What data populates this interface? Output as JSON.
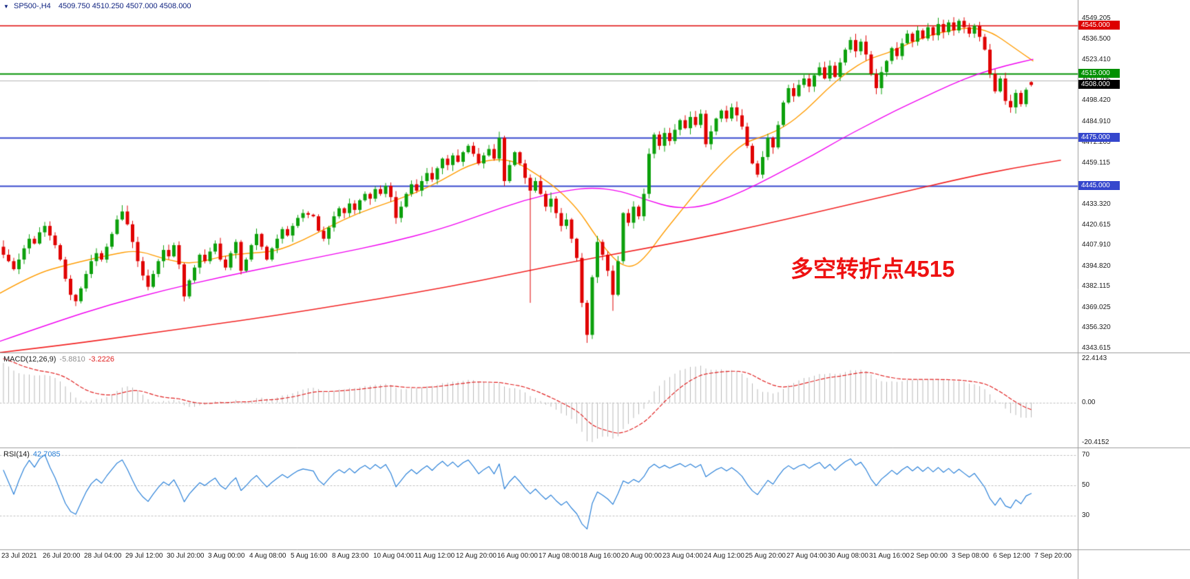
{
  "header": {
    "symbol": "SP500-,H4",
    "ohlc": "4509.750 4510.250 4507.000 4508.000",
    "dropdown_icon": "triangle-down"
  },
  "annotation": {
    "text": "多空转折点4515",
    "color": "#ee1111"
  },
  "price_axis": {
    "labels": [
      "4549.205",
      "4536.500",
      "4523.410",
      "4510.705",
      "4498.420",
      "4484.910",
      "4472.205",
      "4459.115",
      "4433.320",
      "4420.615",
      "4407.910",
      "4394.820",
      "4382.115",
      "4369.025",
      "4356.320",
      "4343.615"
    ],
    "tags": [
      {
        "text": "4545.000",
        "bg": "#dd0000"
      },
      {
        "text": "4515.000",
        "bg": "#009000"
      },
      {
        "text": "4508.000",
        "bg": "#000000"
      },
      {
        "text": "4475.000",
        "bg": "#3547cd"
      },
      {
        "text": "4445.000",
        "bg": "#3547cd"
      }
    ]
  },
  "time_axis": {
    "labels": [
      "23 Jul 2021",
      "26 Jul 20:00",
      "28 Jul 04:00",
      "29 Jul 12:00",
      "30 Jul 20:00",
      "3 Aug 00:00",
      "4 Aug 08:00",
      "5 Aug 16:00",
      "8 Aug 23:00",
      "10 Aug 04:00",
      "11 Aug 12:00",
      "12 Aug 20:00",
      "16 Aug 00:00",
      "17 Aug 08:00",
      "18 Aug 16:00",
      "20 Aug 00:00",
      "23 Aug 04:00",
      "24 Aug 12:00",
      "25 Aug 20:00",
      "27 Aug 04:00",
      "30 Aug 08:00",
      "31 Aug 16:00",
      "2 Sep 00:00",
      "3 Sep 08:00",
      "6 Sep 12:00",
      "7 Sep 20:00"
    ]
  },
  "chart_data": [
    {
      "type": "candlestick",
      "title": "SP500-,H4",
      "y_range": [
        4341,
        4561
      ],
      "up_color": "#0ca00c",
      "down_color": "#e00000",
      "closes": [
        4402,
        4398,
        4393,
        4399,
        4406,
        4412,
        4409,
        4416,
        4420,
        4414,
        4408,
        4399,
        4387,
        4377,
        4373,
        4381,
        4390,
        4398,
        4403,
        4399,
        4407,
        4415,
        4424,
        4429,
        4421,
        4410,
        4398,
        4389,
        4382,
        4390,
        4398,
        4405,
        4401,
        4408,
        4396,
        4376,
        4386,
        4394,
        4402,
        4398,
        4404,
        4409,
        4399,
        4394,
        4403,
        4410,
        4392,
        4399,
        4408,
        4415,
        4407,
        4399,
        4406,
        4412,
        4418,
        4414,
        4420,
        4425,
        4428,
        4427,
        4426,
        4417,
        4412,
        4419,
        4426,
        4431,
        4428,
        4434,
        4430,
        4436,
        4440,
        4437,
        4443,
        4440,
        4445,
        4438,
        4425,
        4432,
        4440,
        4446,
        4442,
        4448,
        4453,
        4449,
        4456,
        4462,
        4458,
        4464,
        4460,
        4466,
        4470,
        4465,
        4459,
        4464,
        4468,
        4462,
        4475,
        4448,
        4458,
        4466,
        4459,
        4450,
        4442,
        4448,
        4440,
        4432,
        4437,
        4428,
        4420,
        4424,
        4412,
        4400,
        4372,
        4352,
        4388,
        4410,
        4402,
        4392,
        4377,
        4398,
        4428,
        4422,
        4432,
        4426,
        4440,
        4465,
        4477,
        4470,
        4478,
        4473,
        4480,
        4486,
        4481,
        4488,
        4483,
        4490,
        4471,
        4479,
        4487,
        4492,
        4487,
        4494,
        4489,
        4482,
        4470,
        4459,
        4452,
        4463,
        4475,
        4469,
        4483,
        4497,
        4506,
        4501,
        4508,
        4512,
        4507,
        4514,
        4519,
        4512,
        4520,
        4513,
        4522,
        4530,
        4536,
        4529,
        4535,
        4527,
        4515,
        4506,
        4516,
        4523,
        4531,
        4526,
        4534,
        4540,
        4535,
        4542,
        4537,
        4544,
        4539,
        4546,
        4541,
        4547,
        4542,
        4548,
        4544,
        4540,
        4545,
        4538,
        4530,
        4515,
        4504,
        4512,
        4498,
        4494,
        4503,
        4496,
        4505,
        4508
      ],
      "wick_overrides": {
        "102": {
          "low": 4372
        },
        "113": {
          "low": 4347
        },
        "118": {
          "low": 4367
        },
        "185": {
          "high": 4549.2
        },
        "199": {
          "open": 4509.75,
          "high": 4510.25,
          "low": 4507.0,
          "close": 4508.0
        }
      },
      "hlines": [
        {
          "price": 4545.0,
          "color": "#dd0000",
          "width": 1.5
        },
        {
          "price": 4515.0,
          "color": "#009000",
          "width": 2
        },
        {
          "price": 4510.705,
          "color": "#b4b4b4",
          "width": 1
        },
        {
          "price": 4475.0,
          "color": "#3547cd",
          "width": 2
        },
        {
          "price": 4445.0,
          "color": "#3547cd",
          "width": 2
        }
      ],
      "moving_averages": [
        {
          "name": "ma-fast-orange",
          "color": "#ff9c00",
          "width": 1.4,
          "points": [
            [
              0,
              4378
            ],
            [
              50,
              4390
            ],
            [
              100,
              4396
            ],
            [
              160,
              4402
            ],
            [
              200,
              4405
            ],
            [
              240,
              4399
            ],
            [
              280,
              4396
            ],
            [
              320,
              4401
            ],
            [
              360,
              4403
            ],
            [
              400,
              4404
            ],
            [
              440,
              4411
            ],
            [
              480,
              4420
            ],
            [
              520,
              4428
            ],
            [
              560,
              4434
            ],
            [
              600,
              4440
            ],
            [
              640,
              4448
            ],
            [
              680,
              4458
            ],
            [
              720,
              4462
            ],
            [
              750,
              4460
            ],
            [
              780,
              4452
            ],
            [
              810,
              4443
            ],
            [
              840,
              4430
            ],
            [
              860,
              4417
            ],
            [
              880,
              4405
            ],
            [
              900,
              4396
            ],
            [
              920,
              4394
            ],
            [
              940,
              4402
            ],
            [
              960,
              4414
            ],
            [
              990,
              4430
            ],
            [
              1020,
              4446
            ],
            [
              1050,
              4460
            ],
            [
              1080,
              4472
            ],
            [
              1110,
              4476
            ],
            [
              1140,
              4482
            ],
            [
              1170,
              4492
            ],
            [
              1200,
              4505
            ],
            [
              1230,
              4516
            ],
            [
              1260,
              4524
            ],
            [
              1290,
              4528
            ],
            [
              1320,
              4534
            ],
            [
              1350,
              4539
            ],
            [
              1380,
              4542
            ],
            [
              1410,
              4544
            ],
            [
              1440,
              4541
            ],
            [
              1470,
              4532
            ],
            [
              1500,
              4523
            ]
          ]
        },
        {
          "name": "ma-mid-magenta",
          "color": "#f000f0",
          "width": 1.4,
          "points": [
            [
              0,
              4348
            ],
            [
              80,
              4360
            ],
            [
              160,
              4371
            ],
            [
              240,
              4380
            ],
            [
              320,
              4388
            ],
            [
              400,
              4395
            ],
            [
              480,
              4402
            ],
            [
              560,
              4409
            ],
            [
              640,
              4418
            ],
            [
              700,
              4427
            ],
            [
              760,
              4436
            ],
            [
              820,
              4442
            ],
            [
              860,
              4444
            ],
            [
              900,
              4442
            ],
            [
              940,
              4436
            ],
            [
              980,
              4431
            ],
            [
              1020,
              4432
            ],
            [
              1060,
              4438
            ],
            [
              1100,
              4446
            ],
            [
              1140,
              4455
            ],
            [
              1180,
              4464
            ],
            [
              1220,
              4474
            ],
            [
              1260,
              4483
            ],
            [
              1300,
              4492
            ],
            [
              1340,
              4500
            ],
            [
              1380,
              4508
            ],
            [
              1420,
              4515
            ],
            [
              1460,
              4520
            ],
            [
              1500,
              4524
            ]
          ]
        },
        {
          "name": "ma-slow-red",
          "color": "#f22222",
          "width": 1.6,
          "points": [
            [
              0,
              4341
            ],
            [
              100,
              4346
            ],
            [
              200,
              4352
            ],
            [
              300,
              4358
            ],
            [
              400,
              4364
            ],
            [
              500,
              4371
            ],
            [
              600,
              4378
            ],
            [
              700,
              4386
            ],
            [
              800,
              4395
            ],
            [
              900,
              4403
            ],
            [
              1000,
              4411
            ],
            [
              1100,
              4420
            ],
            [
              1200,
              4430
            ],
            [
              1300,
              4440
            ],
            [
              1400,
              4450
            ],
            [
              1470,
              4456
            ],
            [
              1540,
              4461
            ]
          ]
        }
      ]
    },
    {
      "type": "bar",
      "name": "MACD",
      "label_name": "MACD(12,26,9)",
      "hist_value": "-5.8810",
      "signal_value": "-3.2226",
      "params": {
        "fast": 12,
        "slow": 26,
        "signal": 9
      },
      "axis_labels": [
        "22.4143",
        "0.00",
        "-20.4152"
      ],
      "axis_range": [
        -20.4152,
        22.4143
      ],
      "histogram_color": "#b8b8b8",
      "signal_color": "#e02020",
      "signal_style": "dashed"
    },
    {
      "type": "line",
      "name": "RSI",
      "label_name": "RSI(14)",
      "value": "42.7085",
      "period": 14,
      "levels": [
        70,
        50,
        30
      ],
      "level_labels": [
        "70",
        "50",
        "30"
      ],
      "line_color": "#2a80d8"
    }
  ]
}
